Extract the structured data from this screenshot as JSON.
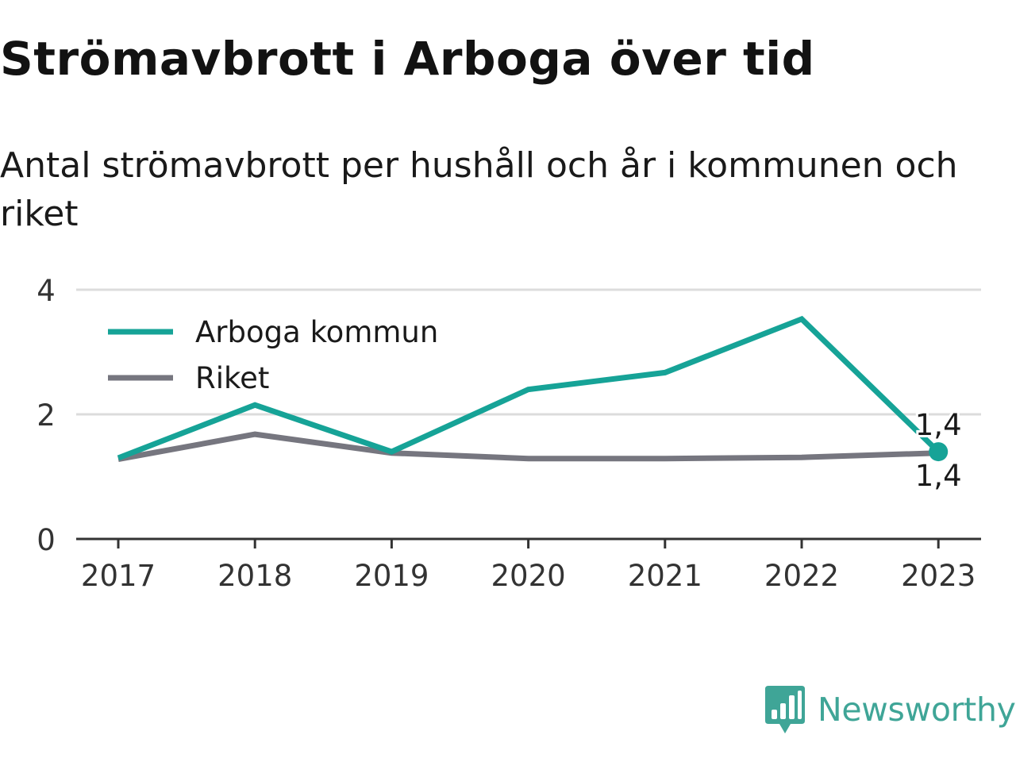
{
  "title": "Strömavbrott i Arboga över tid",
  "subtitle": "Antal strömavbrott per hushåll och år i kommunen och riket",
  "brand": {
    "name": "Newsworthy",
    "logo_icon": "bar-chart-speech-bubble-icon"
  },
  "colors": {
    "arboga": "#16a397",
    "riket": "#76767f",
    "grid": "#dcdcdc",
    "axis": "#333333",
    "brand": "#3fa597"
  },
  "chart_data": {
    "type": "line",
    "categories": [
      "2017",
      "2018",
      "2019",
      "2020",
      "2021",
      "2022",
      "2023"
    ],
    "series": [
      {
        "name": "Arboga kommun",
        "values": [
          1.3,
          2.15,
          1.4,
          2.4,
          2.67,
          3.53,
          1.4
        ]
      },
      {
        "name": "Riket",
        "values": [
          1.28,
          1.68,
          1.38,
          1.29,
          1.29,
          1.31,
          1.38
        ]
      }
    ],
    "ylim": [
      0,
      4
    ],
    "yticks": [
      "0",
      "2",
      "4"
    ],
    "grid": true,
    "legend_position": "top-left",
    "end_labels": {
      "Arboga kommun": "1,4",
      "Riket": "1,4"
    }
  }
}
